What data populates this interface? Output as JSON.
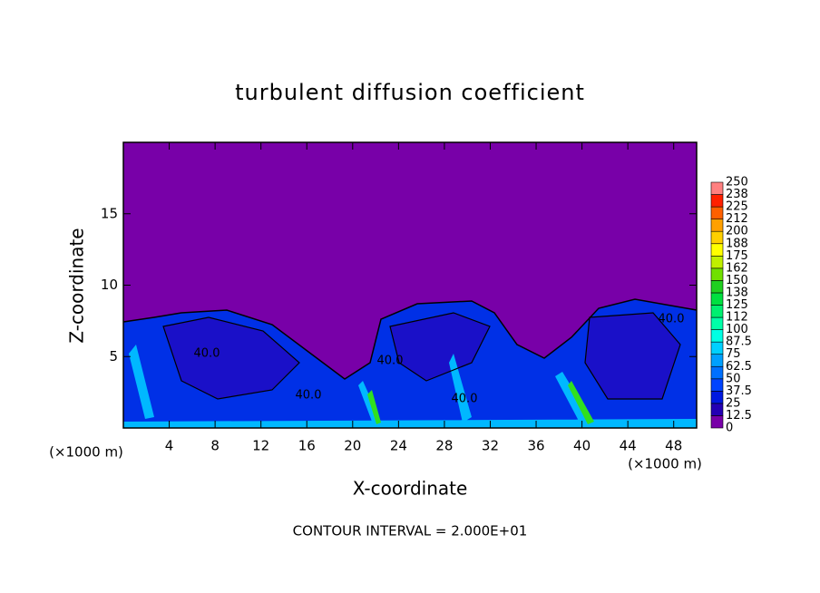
{
  "chart_data": {
    "type": "contour",
    "title": "turbulent diffusion coefficient",
    "x_label": "X-coordinate",
    "y_label": "Z-coordinate",
    "x_unit": "(×1000 m)",
    "xlim": [
      0,
      50
    ],
    "xticks": [
      4,
      8,
      12,
      16,
      20,
      24,
      28,
      32,
      36,
      40,
      44,
      48
    ],
    "ylim": [
      0,
      20
    ],
    "yticks": [
      5,
      10,
      15
    ],
    "colorbar": {
      "levels": [
        0,
        12.5,
        25,
        37.5,
        50,
        62.5,
        75,
        87.5,
        100,
        112,
        125,
        138,
        150,
        162,
        175,
        188,
        200,
        212,
        225,
        238,
        250
      ],
      "colors": [
        "#7800a8",
        "#2400b4",
        "#0018e0",
        "#0044ff",
        "#0070ff",
        "#00a0ff",
        "#00d0ff",
        "#00ffe4",
        "#00ffa8",
        "#00f070",
        "#00e040",
        "#20d020",
        "#70e000",
        "#c0f000",
        "#ffff00",
        "#ffd000",
        "#ffa000",
        "#ff6000",
        "#ff2000",
        "#ff8080"
      ]
    },
    "contour_labels": [
      "40.0",
      "40.0",
      "40.0",
      "40.0",
      "40.0"
    ],
    "footnote": "CONTOUR INTERVAL = 2.000E+01"
  }
}
